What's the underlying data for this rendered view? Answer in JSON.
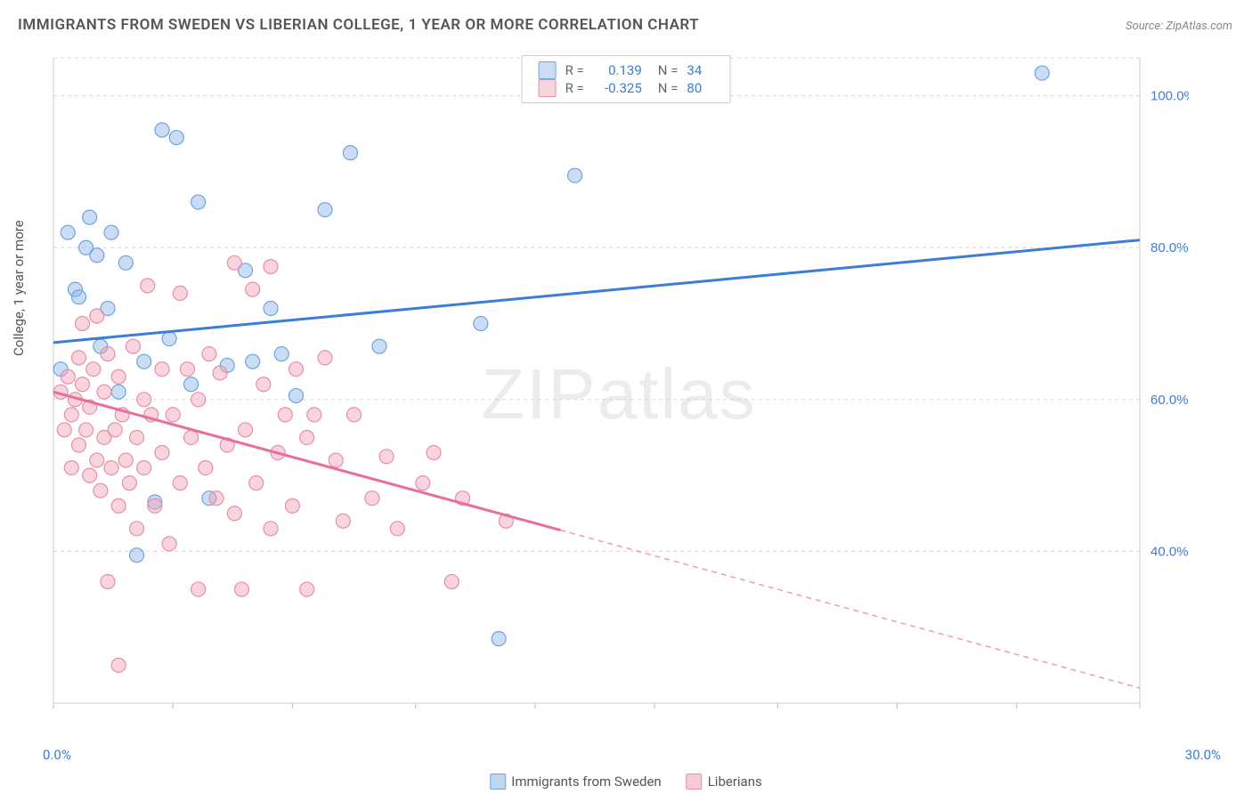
{
  "title": "IMMIGRANTS FROM SWEDEN VS LIBERIAN COLLEGE, 1 YEAR OR MORE CORRELATION CHART",
  "source": "Source: ZipAtlas.com",
  "watermark": "ZIPatlas",
  "y_axis_label": "College, 1 year or more",
  "chart": {
    "type": "scatter",
    "xlim": [
      0,
      30
    ],
    "ylim": [
      20,
      105
    ],
    "y_ticks": [
      40,
      60,
      80,
      100
    ],
    "y_tick_labels": [
      "40.0%",
      "60.0%",
      "80.0%",
      "100.0%"
    ],
    "x_ticks": [
      0,
      3.3,
      6.6,
      10,
      13.3,
      16.6,
      20,
      23.3,
      26.6,
      30
    ],
    "x_tick_labels": [
      "0.0%",
      "30.0%"
    ],
    "background_color": "#ffffff",
    "grid_color": "#d9d9d9",
    "series": [
      {
        "name": "Immigrants from Sweden",
        "marker_color_fill": "rgba(137, 180, 232, 0.45)",
        "marker_color_stroke": "#6fa3df",
        "marker_radius": 8,
        "line_color": "#3b7dd8",
        "line_width": 3,
        "r": "0.139",
        "n": "34",
        "trend": {
          "x1": 0,
          "y1": 67.5,
          "x2": 30,
          "y2": 81,
          "solid_until_x": 30
        },
        "points": [
          [
            0.2,
            64
          ],
          [
            0.4,
            82
          ],
          [
            0.6,
            74.5
          ],
          [
            0.7,
            73.5
          ],
          [
            0.9,
            80
          ],
          [
            1.0,
            84
          ],
          [
            1.2,
            79
          ],
          [
            1.3,
            67
          ],
          [
            1.5,
            72
          ],
          [
            1.6,
            82
          ],
          [
            1.8,
            61
          ],
          [
            2.0,
            78
          ],
          [
            2.3,
            39.5
          ],
          [
            2.5,
            65
          ],
          [
            2.8,
            46.5
          ],
          [
            3.0,
            95.5
          ],
          [
            3.2,
            68
          ],
          [
            3.4,
            94.5
          ],
          [
            3.8,
            62
          ],
          [
            4.0,
            86
          ],
          [
            4.3,
            47
          ],
          [
            4.8,
            64.5
          ],
          [
            5.3,
            77
          ],
          [
            5.5,
            65
          ],
          [
            6.0,
            72
          ],
          [
            6.3,
            66
          ],
          [
            6.7,
            60.5
          ],
          [
            7.5,
            85
          ],
          [
            8.2,
            92.5
          ],
          [
            9.0,
            67
          ],
          [
            11.8,
            70
          ],
          [
            12.3,
            28.5
          ],
          [
            14.4,
            89.5
          ],
          [
            27.3,
            103
          ]
        ]
      },
      {
        "name": "Liberians",
        "marker_color_fill": "rgba(240, 160, 180, 0.45)",
        "marker_color_stroke": "#e78fa8",
        "marker_radius": 8,
        "line_color": "#e76f9a",
        "line_width": 3,
        "r": "-0.325",
        "n": "80",
        "trend": {
          "x1": 0,
          "y1": 61,
          "x2": 30,
          "y2": 22,
          "solid_until_x": 14
        },
        "points": [
          [
            0.2,
            61
          ],
          [
            0.3,
            56
          ],
          [
            0.4,
            63
          ],
          [
            0.5,
            58
          ],
          [
            0.5,
            51
          ],
          [
            0.6,
            60
          ],
          [
            0.7,
            65.5
          ],
          [
            0.7,
            54
          ],
          [
            0.8,
            62
          ],
          [
            0.8,
            70
          ],
          [
            0.9,
            56
          ],
          [
            1.0,
            50
          ],
          [
            1.0,
            59
          ],
          [
            1.1,
            64
          ],
          [
            1.2,
            52
          ],
          [
            1.2,
            71
          ],
          [
            1.3,
            48
          ],
          [
            1.4,
            55
          ],
          [
            1.4,
            61
          ],
          [
            1.5,
            66
          ],
          [
            1.5,
            36
          ],
          [
            1.6,
            51
          ],
          [
            1.7,
            56
          ],
          [
            1.8,
            46
          ],
          [
            1.8,
            63
          ],
          [
            1.8,
            25
          ],
          [
            1.9,
            58
          ],
          [
            2.0,
            52
          ],
          [
            2.1,
            49
          ],
          [
            2.2,
            67
          ],
          [
            2.3,
            55
          ],
          [
            2.3,
            43
          ],
          [
            2.5,
            60
          ],
          [
            2.5,
            51
          ],
          [
            2.6,
            75
          ],
          [
            2.7,
            58
          ],
          [
            2.8,
            46
          ],
          [
            3.0,
            53
          ],
          [
            3.0,
            64
          ],
          [
            3.2,
            41
          ],
          [
            3.3,
            58
          ],
          [
            3.5,
            74
          ],
          [
            3.5,
            49
          ],
          [
            3.7,
            64
          ],
          [
            3.8,
            55
          ],
          [
            4.0,
            35
          ],
          [
            4.0,
            60
          ],
          [
            4.2,
            51
          ],
          [
            4.3,
            66
          ],
          [
            4.5,
            47
          ],
          [
            4.6,
            63.5
          ],
          [
            4.8,
            54
          ],
          [
            5.0,
            45
          ],
          [
            5.0,
            78
          ],
          [
            5.2,
            35
          ],
          [
            5.3,
            56
          ],
          [
            5.5,
            74.5
          ],
          [
            5.6,
            49
          ],
          [
            5.8,
            62
          ],
          [
            6.0,
            77.5
          ],
          [
            6.0,
            43
          ],
          [
            6.2,
            53
          ],
          [
            6.4,
            58
          ],
          [
            6.6,
            46
          ],
          [
            6.7,
            64
          ],
          [
            7.0,
            55
          ],
          [
            7.0,
            35
          ],
          [
            7.2,
            58
          ],
          [
            7.5,
            65.5
          ],
          [
            7.8,
            52
          ],
          [
            8.0,
            44
          ],
          [
            8.3,
            58
          ],
          [
            8.8,
            47
          ],
          [
            9.2,
            52.5
          ],
          [
            9.5,
            43
          ],
          [
            10.2,
            49
          ],
          [
            10.5,
            53
          ],
          [
            11.0,
            36
          ],
          [
            11.3,
            47
          ],
          [
            12.5,
            44
          ]
        ]
      }
    ]
  },
  "x_legend": [
    {
      "label": "Immigrants from Sweden",
      "fill": "rgba(137,180,232,0.55)",
      "stroke": "#6fa3df"
    },
    {
      "label": "Liberians",
      "fill": "rgba(240,160,180,0.55)",
      "stroke": "#e78fa8"
    }
  ]
}
